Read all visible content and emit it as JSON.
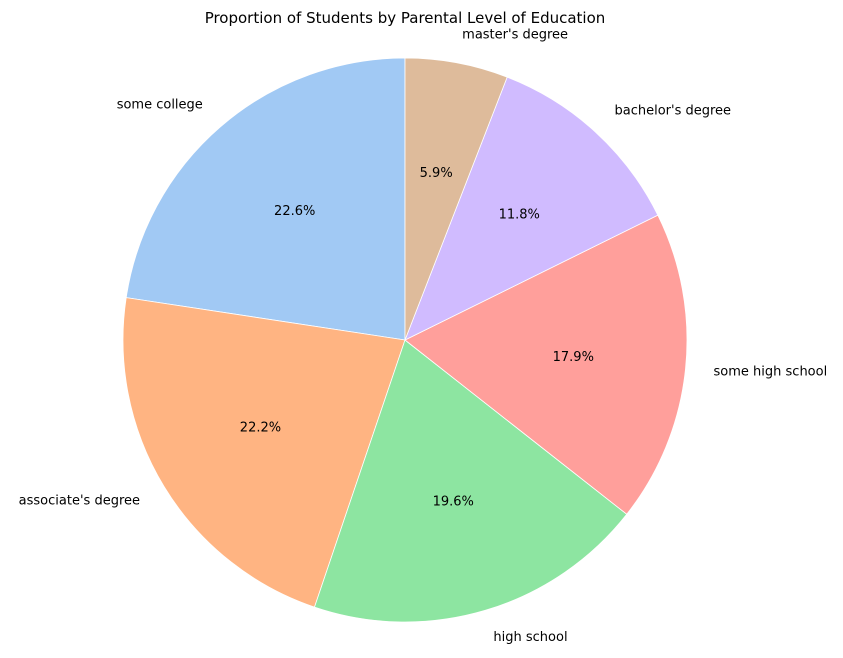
{
  "chart_data": {
    "type": "pie",
    "title": "Proportion of Students by Parental Level of Education",
    "categories": [
      "some college",
      "associate's degree",
      "high school",
      "some high school",
      "bachelor's degree",
      "master's degree"
    ],
    "values": [
      22.6,
      22.2,
      19.6,
      17.9,
      11.8,
      5.9
    ],
    "value_labels": [
      "22.6%",
      "22.2%",
      "19.6%",
      "17.9%",
      "11.8%",
      "5.9%"
    ],
    "colors": [
      "#a1c9f4",
      "#ffb482",
      "#8de5a1",
      "#ff9f9b",
      "#d0bbff",
      "#debb9b"
    ],
    "start_angle_deg": 90,
    "direction": "counterclockwise",
    "legend": "none"
  }
}
